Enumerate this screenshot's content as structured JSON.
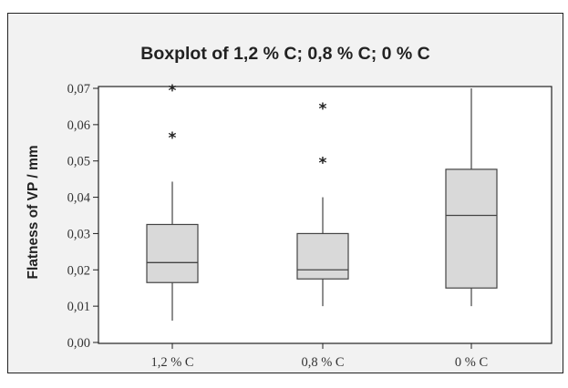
{
  "chart_data": {
    "type": "boxplot",
    "title": "Boxplot of 1,2 % C; 0,8 % C; 0 % C",
    "xlabel": "",
    "ylabel": "Flatness of VP / mm",
    "categories": [
      "1,2 % C",
      "0,8 % C",
      "0 % C"
    ],
    "ylim": [
      0,
      0.07
    ],
    "yticks": [
      0,
      0.01,
      0.02,
      0.03,
      0.04,
      0.05,
      0.06,
      0.07
    ],
    "ytick_labels": [
      "0,00",
      "0,01",
      "0,02",
      "0,03",
      "0,04",
      "0,05",
      "0,06",
      "0,07"
    ],
    "boxes": [
      {
        "category": "1,2 % C",
        "whisker_low": 0.006,
        "q1": 0.0165,
        "median": 0.022,
        "q3": 0.0325,
        "whisker_high": 0.0443,
        "outliers": [
          0.057,
          0.07
        ]
      },
      {
        "category": "0,8 % C",
        "whisker_low": 0.01,
        "q1": 0.0175,
        "median": 0.02,
        "q3": 0.03,
        "whisker_high": 0.04,
        "outliers": [
          0.05,
          0.065
        ]
      },
      {
        "category": "0 % C",
        "whisker_low": 0.01,
        "q1": 0.015,
        "median": 0.035,
        "q3": 0.0477,
        "whisker_high": 0.07,
        "outliers": []
      }
    ],
    "outlier_symbol": "*",
    "grid": false,
    "legend": "none",
    "colors": {
      "box_fill": "#d9d9d9",
      "line": "#444444",
      "background": "#f2f2f2",
      "frame": "#222222",
      "plot_area": "#ffffff"
    }
  }
}
